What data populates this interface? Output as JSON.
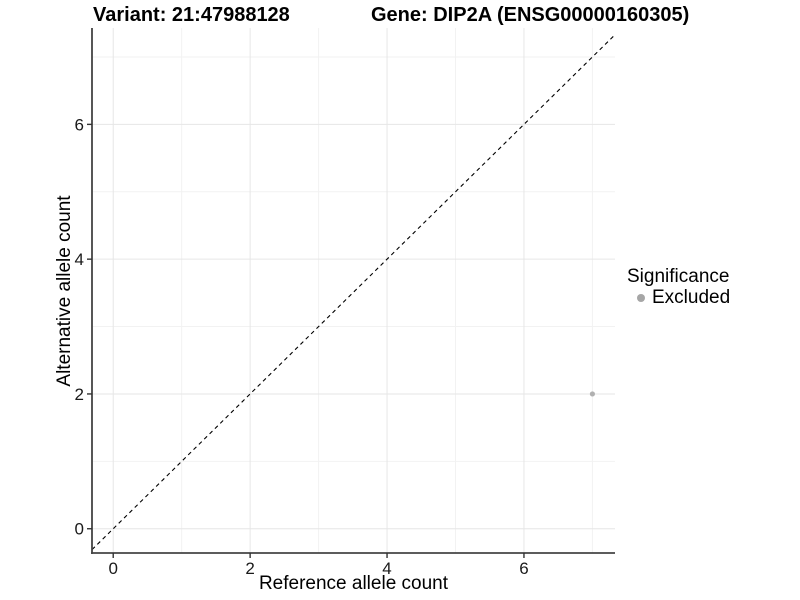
{
  "chart_data": {
    "type": "scatter",
    "title_left": "Variant: 21:47988128",
    "title_right": "Gene: DIP2A (ENSG00000160305)",
    "xlabel": "Reference allele count",
    "ylabel": "Alternative allele count",
    "xlim": [
      -0.31,
      7.33
    ],
    "ylim": [
      -0.36,
      7.43
    ],
    "x_major_ticks": [
      0,
      2,
      4,
      6
    ],
    "x_minor_ticks": [
      1,
      3,
      5,
      7
    ],
    "y_major_ticks": [
      0,
      2,
      4,
      6
    ],
    "y_minor_ticks": [
      1,
      3,
      5,
      7
    ],
    "grid": true,
    "series": [
      {
        "name": "Excluded",
        "color": "#b0b0b0",
        "points": [
          {
            "x": 7,
            "y": 2
          }
        ]
      }
    ],
    "reference_line": {
      "type": "abline",
      "slope": 1,
      "intercept": 0,
      "style": "dashed",
      "color": "#000000"
    },
    "legend": {
      "title": "Significance",
      "position": "right",
      "entries": [
        {
          "label": "Excluded",
          "color": "#a6a6a6"
        }
      ]
    },
    "colors": {
      "grid_major": "#e6e6e6",
      "grid_minor": "#f2f2f2",
      "axis_line": "#444444",
      "tick_mark": "#333333",
      "tick_label": "#1a1a1a",
      "background": "#ffffff"
    }
  }
}
